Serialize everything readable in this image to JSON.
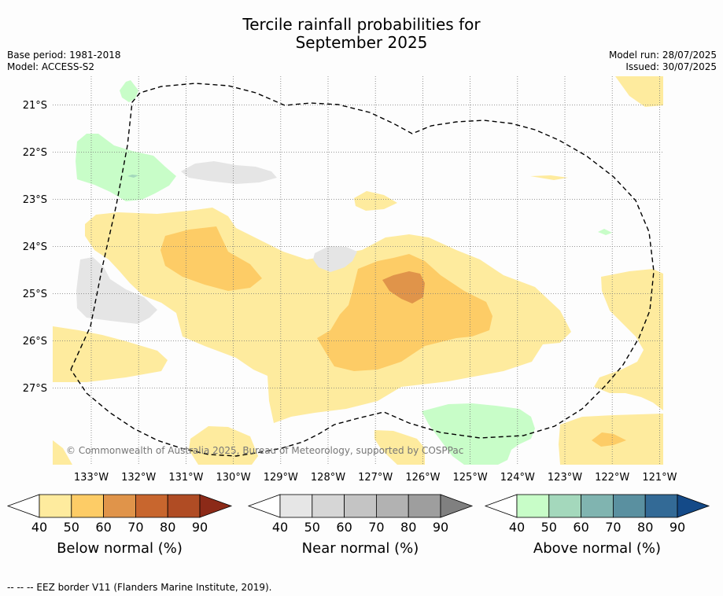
{
  "title_line1": "Tercile rainfall probabilities for",
  "title_line2": "September 2025",
  "meta": {
    "base_period": "Base period: 1981-2018",
    "model": "Model: ACCESS-S2",
    "model_run": "Model run: 28/07/2025",
    "issued": "Issued: 30/07/2025"
  },
  "map": {
    "lat_labels": [
      "21°S",
      "22°S",
      "23°S",
      "24°S",
      "25°S",
      "26°S",
      "27°S"
    ],
    "lon_labels": [
      "133°W",
      "132°W",
      "131°W",
      "130°W",
      "129°W",
      "128°W",
      "127°W",
      "126°W",
      "125°W",
      "124°W",
      "123°W",
      "122°W",
      "121°W"
    ],
    "copyright": "© Commonwealth of Australia 2025, Bureau of Meteorology, supported by COSPPac",
    "eez_border_style": "dashed",
    "colors": {
      "below_40": "#feeb9e",
      "below_50": "#fdcc66",
      "below_60": "#e0944a",
      "near_40": "#e5e5e5",
      "above_40": "#c8fdc8",
      "above_50": "#a4d8bc"
    }
  },
  "legends": [
    {
      "label": "Below normal (%)",
      "ticks": [
        "40",
        "50",
        "60",
        "70",
        "80",
        "90"
      ],
      "colors": [
        "#feeb9e",
        "#fdcc66",
        "#e0944a",
        "#c8662e",
        "#b04c24",
        "#8c2a18"
      ]
    },
    {
      "label": "Near normal (%)",
      "ticks": [
        "40",
        "50",
        "60",
        "70",
        "80",
        "90"
      ],
      "colors": [
        "#e6e6e6",
        "#d6d6d6",
        "#c4c4c4",
        "#b2b2b2",
        "#9e9e9e",
        "#808080"
      ]
    },
    {
      "label": "Above normal (%)",
      "ticks": [
        "40",
        "50",
        "60",
        "70",
        "80",
        "90"
      ],
      "colors": [
        "#c8fdc8",
        "#a4d8bc",
        "#80b4b0",
        "#5a90a0",
        "#336a96",
        "#144a88"
      ]
    }
  ],
  "footer": "--  --  -- EEZ border V11 (Flanders Marine Institute, 2019)."
}
